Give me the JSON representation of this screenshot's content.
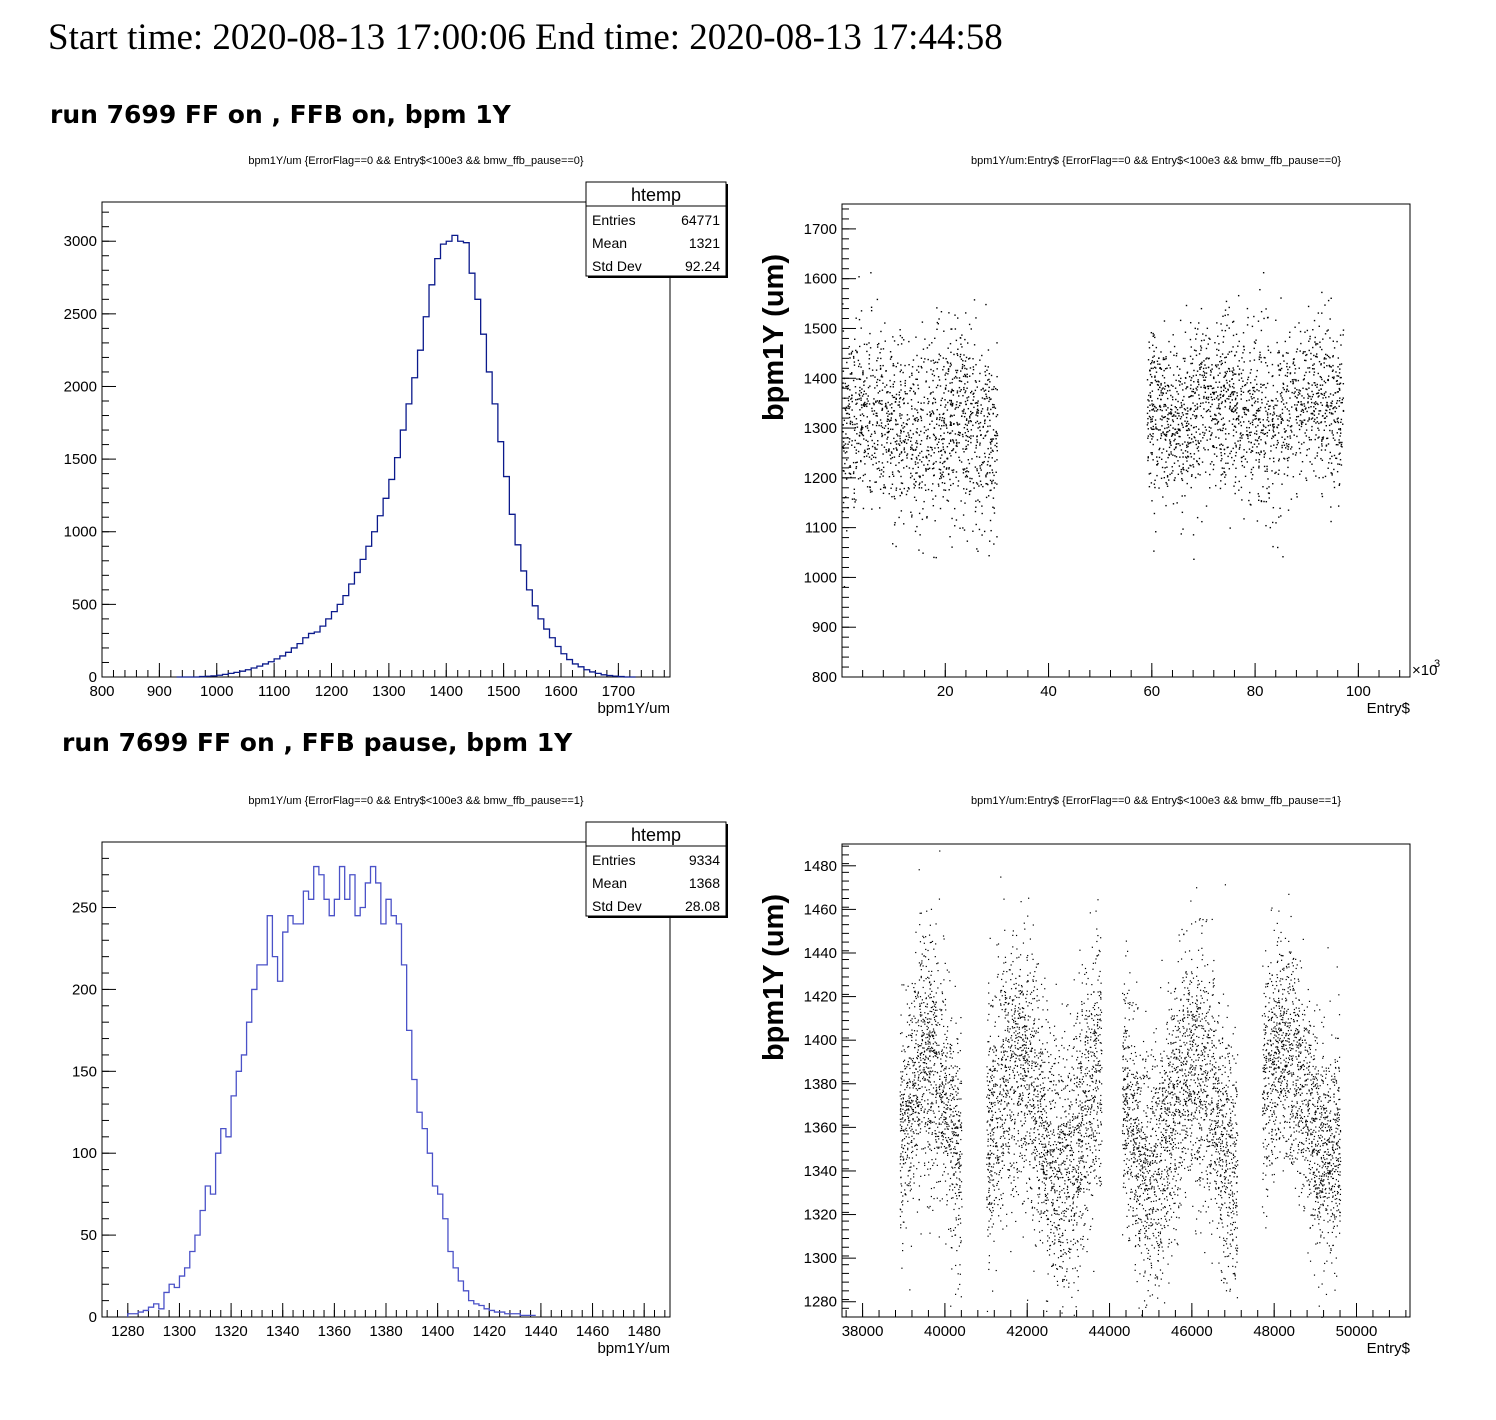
{
  "header": {
    "text": "Start time: 2020-08-13 17:00:06 End time: 2020-08-13 17:44:58"
  },
  "sections": [
    {
      "title": "run 7699 FF on , FFB on, bpm 1Y"
    },
    {
      "title": "run 7699 FF on , FFB pause, bpm 1Y"
    }
  ],
  "colors": {
    "hist1": "#0b1a8c",
    "hist2": "#4b52c8",
    "points": "#000000",
    "axis": "#000000"
  },
  "chart_data": [
    {
      "type": "bar",
      "title": "bpm1Y/um {ErrorFlag==0 && Entry$<100e3 && bmw_ffb_pause==0}",
      "xlabel": "bpm1Y/um",
      "ylabel": "",
      "xlim": [
        800,
        1790
      ],
      "ylim": [
        0,
        3270
      ],
      "xticks": [
        800,
        900,
        1000,
        1100,
        1200,
        1300,
        1400,
        1500,
        1600,
        1700
      ],
      "yticks": [
        0,
        500,
        1000,
        1500,
        2000,
        2500,
        3000
      ],
      "grid": false,
      "legend": "top-right",
      "stats": {
        "title": "htemp",
        "rows": [
          {
            "label": "Entries",
            "value": "64771"
          },
          {
            "label": "Mean",
            "value": "1321"
          },
          {
            "label": "Std Dev",
            "value": "92.24"
          }
        ]
      },
      "bin_start": 930,
      "bin_width": 10,
      "values": [
        0,
        0,
        0,
        0,
        3,
        5,
        8,
        12,
        18,
        25,
        32,
        40,
        50,
        62,
        75,
        90,
        105,
        125,
        145,
        170,
        200,
        230,
        270,
        300,
        310,
        350,
        400,
        450,
        500,
        560,
        640,
        720,
        810,
        900,
        1000,
        1110,
        1230,
        1360,
        1510,
        1700,
        1880,
        2060,
        2250,
        2480,
        2700,
        2880,
        2980,
        3000,
        3040,
        3000,
        2990,
        2780,
        2600,
        2360,
        2100,
        1880,
        1620,
        1380,
        1120,
        910,
        730,
        600,
        490,
        400,
        330,
        270,
        210,
        160,
        120,
        90,
        70,
        50,
        35,
        25,
        15,
        10,
        6,
        3,
        0,
        0
      ]
    },
    {
      "type": "scatter",
      "title": "bpm1Y/um:Entry$ {ErrorFlag==0 && Entry$<100e3 && bmw_ffb_pause==0}",
      "xlabel": "Entry$",
      "ylabel": "bpm1Y (um)",
      "x_multiplier": "×10",
      "x_multiplier_exp": "3",
      "xlim": [
        0,
        110
      ],
      "ylim": [
        800,
        1750
      ],
      "xticks": [
        20,
        40,
        60,
        80,
        100
      ],
      "yticks": [
        800,
        900,
        1000,
        1100,
        1200,
        1300,
        1400,
        1500,
        1600,
        1700
      ],
      "grid": false,
      "clusters": [
        {
          "x": [
            0,
            30
          ],
          "mean": 1300,
          "sd": 92
        },
        {
          "x": [
            59,
            97
          ],
          "mean": 1335,
          "sd": 85
        }
      ]
    },
    {
      "type": "bar",
      "title": "bpm1Y/um {ErrorFlag==0 && Entry$<100e3 && bmw_ffb_pause==1}",
      "xlabel": "bpm1Y/um",
      "ylabel": "",
      "xlim": [
        1270,
        1490
      ],
      "ylim": [
        0,
        290
      ],
      "xticks": [
        1280,
        1300,
        1320,
        1340,
        1360,
        1380,
        1400,
        1420,
        1440,
        1460,
        1480
      ],
      "yticks": [
        0,
        50,
        100,
        150,
        200,
        250
      ],
      "grid": false,
      "legend": "top-right",
      "stats": {
        "title": "htemp",
        "rows": [
          {
            "label": "Entries",
            "value": "9334"
          },
          {
            "label": "Mean",
            "value": "1368"
          },
          {
            "label": "Std Dev",
            "value": "28.08"
          }
        ]
      },
      "bin_start": 1280,
      "bin_width": 2,
      "values": [
        2,
        2,
        3,
        4,
        6,
        8,
        5,
        15,
        20,
        18,
        25,
        30,
        40,
        50,
        65,
        80,
        75,
        100,
        115,
        110,
        135,
        150,
        160,
        180,
        200,
        215,
        215,
        245,
        220,
        205,
        235,
        245,
        240,
        240,
        260,
        255,
        275,
        270,
        255,
        245,
        255,
        275,
        255,
        270,
        245,
        250,
        265,
        275,
        265,
        240,
        255,
        245,
        240,
        215,
        175,
        145,
        125,
        115,
        100,
        80,
        75,
        60,
        40,
        30,
        22,
        16,
        10,
        8,
        7,
        5,
        4,
        3,
        3,
        2,
        2,
        2,
        1,
        1,
        1
      ]
    },
    {
      "type": "scatter",
      "title": "bpm1Y/um:Entry$ {ErrorFlag==0 && Entry$<100e3 && bmw_ffb_pause==1}",
      "xlabel": "Entry$",
      "ylabel": "bpm1Y (um)",
      "xlim": [
        37500,
        51300
      ],
      "ylim": [
        1273,
        1490
      ],
      "xticks": [
        38000,
        40000,
        42000,
        44000,
        46000,
        48000,
        50000
      ],
      "yticks": [
        1280,
        1300,
        1320,
        1340,
        1360,
        1380,
        1400,
        1420,
        1440,
        1460,
        1480
      ],
      "grid": false,
      "clusters": [
        {
          "x": [
            38900,
            40400
          ],
          "mean": 1365,
          "sd": 28
        },
        {
          "x": [
            41000,
            43800
          ],
          "mean": 1365,
          "sd": 30
        },
        {
          "x": [
            44300,
            47100
          ],
          "mean": 1365,
          "sd": 28
        },
        {
          "x": [
            47700,
            49600
          ],
          "mean": 1372,
          "sd": 25
        }
      ]
    }
  ]
}
